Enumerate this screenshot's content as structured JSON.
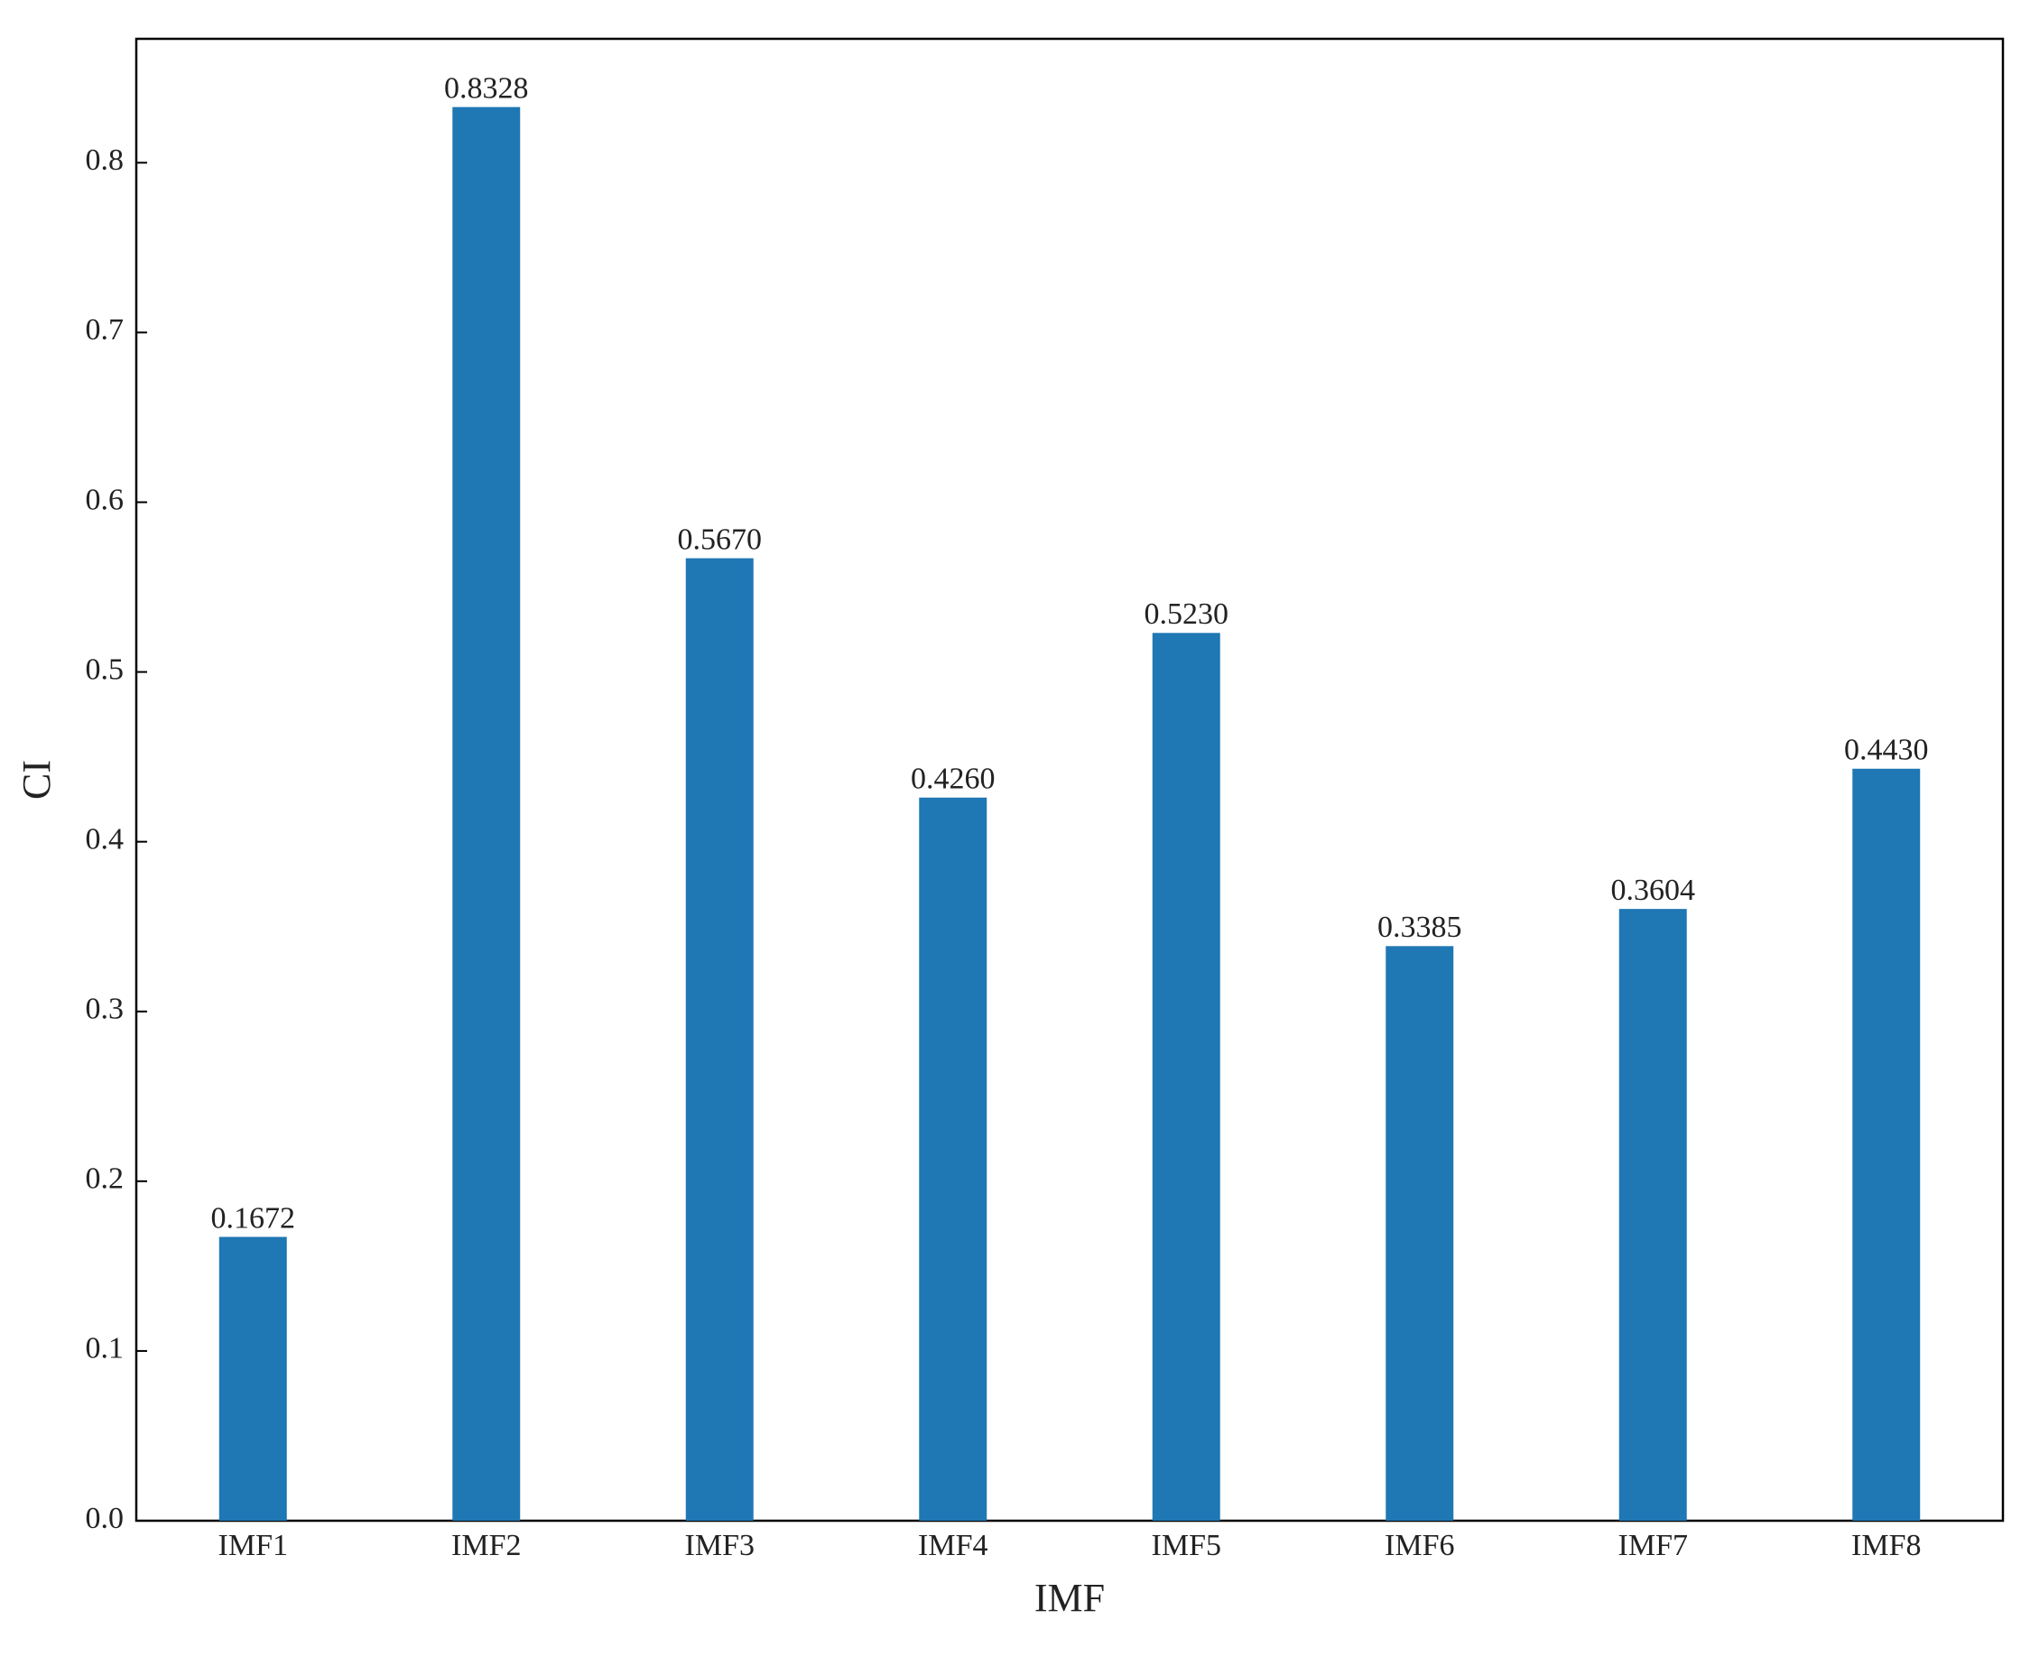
{
  "chart_data": {
    "type": "bar",
    "x_label": "IMF",
    "y_label": "CI",
    "categories": [
      "IMF1",
      "IMF2",
      "IMF3",
      "IMF4",
      "IMF5",
      "IMF6",
      "IMF7",
      "IMF8"
    ],
    "values": [
      0.1672,
      0.8328,
      0.567,
      0.426,
      0.523,
      0.3385,
      0.3604,
      0.443
    ],
    "value_labels": [
      "0.1672",
      "0.8328",
      "0.5670",
      "0.4260",
      "0.5230",
      "0.3385",
      "0.3604",
      "0.4430"
    ],
    "color": "#1f77b4",
    "ylim": [
      0,
      0.873
    ],
    "yticks": [
      {
        "value": 0,
        "label": "0.0"
      },
      0.1,
      0.2,
      0.3,
      0.4,
      0.5,
      0.6,
      0.7,
      0.8
    ],
    "grid": false
  }
}
